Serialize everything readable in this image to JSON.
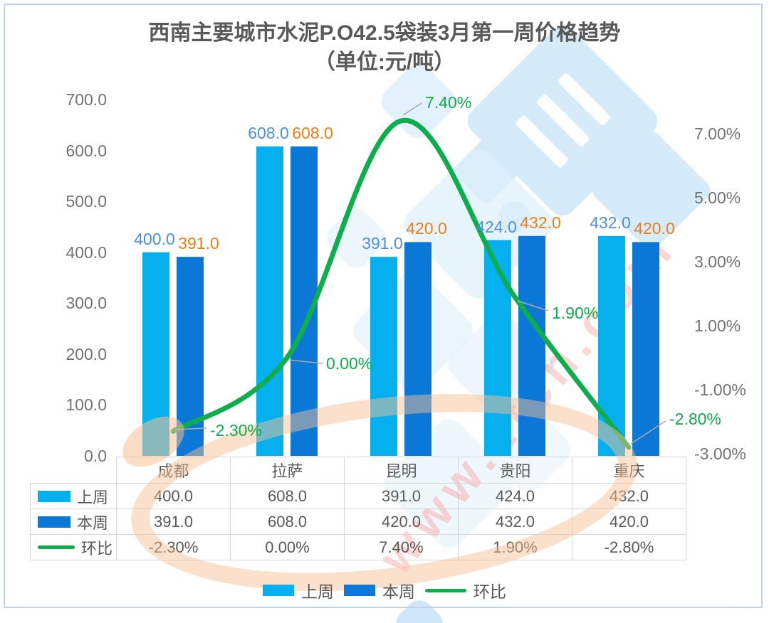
{
  "title": {
    "line1": "西南主要城市水泥P.O42.5袋装3月第一周价格趋势",
    "line2": "（单位:元/吨）"
  },
  "chart_data": {
    "type": "bar+line",
    "categories": [
      "成都",
      "拉萨",
      "昆明",
      "贵阳",
      "重庆"
    ],
    "series": [
      {
        "name": "上周",
        "type": "bar",
        "axis": "left",
        "values": [
          400.0,
          608.0,
          391.0,
          424.0,
          432.0
        ],
        "labels": [
          "400.0",
          "608.0",
          "391.0",
          "424.0",
          "432.0"
        ]
      },
      {
        "name": "本周",
        "type": "bar",
        "axis": "left",
        "values": [
          391.0,
          608.0,
          420.0,
          432.0,
          420.0
        ],
        "labels": [
          "391.0",
          "608.0",
          "420.0",
          "432.0",
          "420.0"
        ]
      },
      {
        "name": "环比",
        "type": "line",
        "axis": "right",
        "values": [
          -2.3,
          0.0,
          7.4,
          1.9,
          -2.8
        ],
        "labels": [
          "-2.30%",
          "0.00%",
          "7.40%",
          "1.90%",
          "-2.80%"
        ]
      }
    ],
    "left_axis": {
      "min": 0,
      "max": 700,
      "tick_values": [
        700,
        600,
        500,
        400,
        300,
        200,
        100,
        0
      ],
      "tick_labels": [
        "700.0",
        "600.0",
        "500.0",
        "400.0",
        "300.0",
        "200.0",
        "100.0",
        "0.0"
      ]
    },
    "right_axis": {
      "min": -3,
      "max": 7,
      "tick_values": [
        7,
        5,
        3,
        1,
        -1,
        -3
      ],
      "tick_labels": [
        "7.00%",
        "5.00%",
        "3.00%",
        "1.00%",
        "-1.00%",
        "-3.00%"
      ]
    },
    "grid": false,
    "legend_position": "bottom"
  },
  "table": {
    "columns": [
      "成都",
      "拉萨",
      "昆明",
      "贵阳",
      "重庆"
    ],
    "rows": [
      {
        "label": "上周",
        "swatch": "bar-light",
        "values": [
          "400.0",
          "608.0",
          "391.0",
          "424.0",
          "432.0"
        ]
      },
      {
        "label": "本周",
        "swatch": "bar-dark",
        "values": [
          "391.0",
          "608.0",
          "420.0",
          "432.0",
          "420.0"
        ]
      },
      {
        "label": "环比",
        "swatch": "line-green",
        "values": [
          "-2.30%",
          "0.00%",
          "7.40%",
          "1.90%",
          "-2.80%"
        ]
      }
    ]
  },
  "legend": {
    "items": [
      {
        "label": "上周",
        "swatch": "bar-light"
      },
      {
        "label": "本周",
        "swatch": "bar-dark"
      },
      {
        "label": "环比",
        "swatch": "line-green"
      }
    ]
  },
  "watermark": {
    "text": "www.ztcn.com"
  },
  "colors": {
    "bar_light": "#06B0EE",
    "bar_dark": "#0B77D6",
    "line_green": "#0EAD4E",
    "label_blue": "#4E8FE0",
    "label_orange": "#EF7D1A",
    "axis_text": "#737373",
    "title_text": "#595959",
    "table_border": "#D6D6D6",
    "frame_border": "#BDD5EC",
    "leader_line": "#A9A9A9"
  }
}
